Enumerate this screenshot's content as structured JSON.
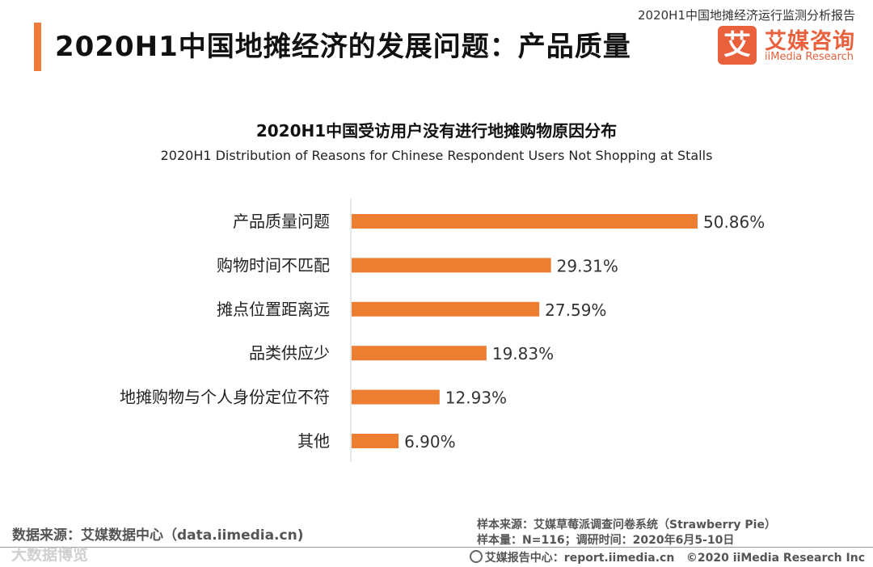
{
  "header": {
    "report_name": "2020H1中国地摊经济运行监测分析报告",
    "page_title": "2020H1中国地摊经济的发展问题：产品质量",
    "logo_mark": "艾",
    "logo_cn": "艾媒咨询",
    "logo_en": "iiMedia Research"
  },
  "colors": {
    "accent": "#ef7b3a",
    "bar": "#ed7d31",
    "logo": "#e8603c"
  },
  "chart_data": {
    "type": "bar",
    "orientation": "horizontal",
    "title": "2020H1中国受访用户没有进行地摊购物原因分布",
    "subtitle": "2020H1 Distribution of Reasons for Chinese Respondent Users Not Shopping at Stalls",
    "categories": [
      "产品质量问题",
      "购物时间不匹配",
      "摊点位置距离远",
      "品类供应少",
      "地摊购物与个人身份定位不符",
      "其他"
    ],
    "values": [
      50.86,
      29.31,
      27.59,
      19.83,
      12.93,
      6.9
    ],
    "value_labels": [
      "50.86%",
      "29.31%",
      "27.59%",
      "19.83%",
      "12.93%",
      "6.90%"
    ],
    "unit": "%",
    "xlim": [
      0,
      60
    ],
    "xlabel": "",
    "ylabel": "",
    "grid": false,
    "legend": "none"
  },
  "footer": {
    "data_source": "数据来源：艾媒数据中心（data.iimedia.cn)",
    "sample_source": "样本来源：艾媒草莓派调查问卷系统（Strawberry Pie）",
    "sample_info": "样本量：N=116；调研时间：2020年6月5-10日",
    "report_center": "艾媒报告中心：report.iimedia.cn",
    "copyright": "©2020  iiMedia Research  Inc",
    "watermark": "大数据博览"
  }
}
